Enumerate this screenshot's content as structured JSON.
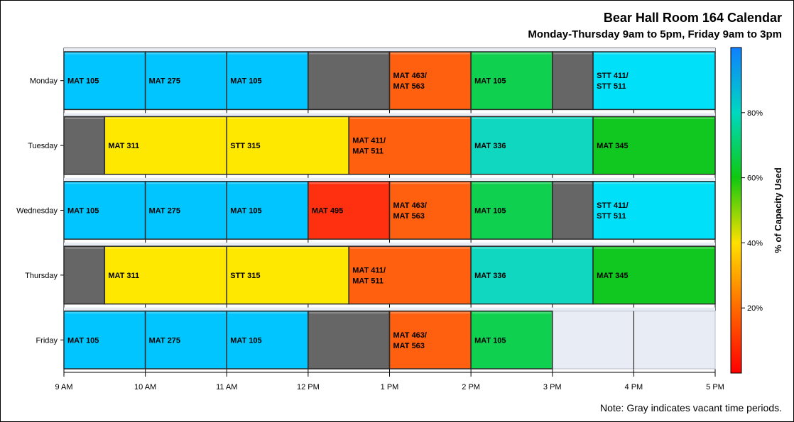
{
  "header": {
    "title": "Bear Hall Room 164 Calendar",
    "subtitle": "Monday-Thursday 9am to 5pm, Friday 9am to 3pm"
  },
  "note": "Note: Gray indicates vacant time periods.",
  "colors": {
    "vacant": "#666666",
    "closed": "#e8ecf4",
    "border": "#2a2a2a",
    "gridline": "#000000"
  },
  "chart_data": {
    "type": "bar",
    "subtype": "horizontal-timeline",
    "x_axis": {
      "range": [
        "9 AM",
        "5 PM"
      ],
      "ticks": [
        "9 AM",
        "10 AM",
        "11 AM",
        "12 PM",
        "1 PM",
        "2 PM",
        "3 PM",
        "4 PM",
        "5 PM"
      ]
    },
    "days": [
      "Monday",
      "Tuesday",
      "Wednesday",
      "Thursday",
      "Friday"
    ],
    "segments": [
      {
        "day": "Monday",
        "start": "9:00 AM",
        "end": "10:00 AM",
        "label": [
          "MAT 105"
        ],
        "color": "#00c5ff"
      },
      {
        "day": "Monday",
        "start": "10:00 AM",
        "end": "11:00 AM",
        "label": [
          "MAT 275"
        ],
        "color": "#00c5ff"
      },
      {
        "day": "Monday",
        "start": "11:00 AM",
        "end": "12:00 PM",
        "label": [
          "MAT 105"
        ],
        "color": "#00c5ff"
      },
      {
        "day": "Monday",
        "start": "12:00 PM",
        "end": "1:00 PM",
        "label": [],
        "color": "#666666"
      },
      {
        "day": "Monday",
        "start": "1:00 PM",
        "end": "2:00 PM",
        "label": [
          "MAT 463/",
          "MAT 563"
        ],
        "color": "#ff6010"
      },
      {
        "day": "Monday",
        "start": "2:00 PM",
        "end": "3:00 PM",
        "label": [
          "MAT 105"
        ],
        "color": "#10d050"
      },
      {
        "day": "Monday",
        "start": "3:00 PM",
        "end": "3:30 PM",
        "label": [],
        "color": "#666666"
      },
      {
        "day": "Monday",
        "start": "3:30 PM",
        "end": "5:00 PM",
        "label": [
          "STT 411/",
          "STT 511"
        ],
        "color": "#00e0f8"
      },
      {
        "day": "Tuesday",
        "start": "9:00 AM",
        "end": "9:30 AM",
        "label": [],
        "color": "#666666"
      },
      {
        "day": "Tuesday",
        "start": "9:30 AM",
        "end": "11:00 AM",
        "label": [
          "MAT 311"
        ],
        "color": "#ffe800"
      },
      {
        "day": "Tuesday",
        "start": "11:00 AM",
        "end": "12:30 PM",
        "label": [
          "STT 315"
        ],
        "color": "#ffe800"
      },
      {
        "day": "Tuesday",
        "start": "12:30 PM",
        "end": "2:00 PM",
        "label": [
          "MAT 411/",
          "MAT 511"
        ],
        "color": "#ff6010"
      },
      {
        "day": "Tuesday",
        "start": "2:00 PM",
        "end": "3:30 PM",
        "label": [
          "MAT 336"
        ],
        "color": "#10d8c0"
      },
      {
        "day": "Tuesday",
        "start": "3:30 PM",
        "end": "5:00 PM",
        "label": [
          "MAT 345"
        ],
        "color": "#10c820"
      },
      {
        "day": "Wednesday",
        "start": "9:00 AM",
        "end": "10:00 AM",
        "label": [
          "MAT 105"
        ],
        "color": "#00c5ff"
      },
      {
        "day": "Wednesday",
        "start": "10:00 AM",
        "end": "11:00 AM",
        "label": [
          "MAT 275"
        ],
        "color": "#00c5ff"
      },
      {
        "day": "Wednesday",
        "start": "11:00 AM",
        "end": "12:00 PM",
        "label": [
          "MAT 105"
        ],
        "color": "#00c5ff"
      },
      {
        "day": "Wednesday",
        "start": "12:00 PM",
        "end": "1:00 PM",
        "label": [
          "MAT 495"
        ],
        "color": "#ff3010"
      },
      {
        "day": "Wednesday",
        "start": "1:00 PM",
        "end": "2:00 PM",
        "label": [
          "MAT 463/",
          "MAT 563"
        ],
        "color": "#ff6010"
      },
      {
        "day": "Wednesday",
        "start": "2:00 PM",
        "end": "3:00 PM",
        "label": [
          "MAT 105"
        ],
        "color": "#10d050"
      },
      {
        "day": "Wednesday",
        "start": "3:00 PM",
        "end": "3:30 PM",
        "label": [],
        "color": "#666666"
      },
      {
        "day": "Wednesday",
        "start": "3:30 PM",
        "end": "5:00 PM",
        "label": [
          "STT 411/",
          "STT 511"
        ],
        "color": "#00e0f8"
      },
      {
        "day": "Thursday",
        "start": "9:00 AM",
        "end": "9:30 AM",
        "label": [],
        "color": "#666666"
      },
      {
        "day": "Thursday",
        "start": "9:30 AM",
        "end": "11:00 AM",
        "label": [
          "MAT 311"
        ],
        "color": "#ffe800"
      },
      {
        "day": "Thursday",
        "start": "11:00 AM",
        "end": "12:30 PM",
        "label": [
          "STT 315"
        ],
        "color": "#ffe800"
      },
      {
        "day": "Thursday",
        "start": "12:30 PM",
        "end": "2:00 PM",
        "label": [
          "MAT 411/",
          "MAT 511"
        ],
        "color": "#ff6010"
      },
      {
        "day": "Thursday",
        "start": "2:00 PM",
        "end": "3:30 PM",
        "label": [
          "MAT 336"
        ],
        "color": "#10d8c0"
      },
      {
        "day": "Thursday",
        "start": "3:30 PM",
        "end": "5:00 PM",
        "label": [
          "MAT 345"
        ],
        "color": "#10c820"
      },
      {
        "day": "Friday",
        "start": "9:00 AM",
        "end": "10:00 AM",
        "label": [
          "MAT 105"
        ],
        "color": "#00c5ff"
      },
      {
        "day": "Friday",
        "start": "10:00 AM",
        "end": "11:00 AM",
        "label": [
          "MAT 275"
        ],
        "color": "#00c5ff"
      },
      {
        "day": "Friday",
        "start": "11:00 AM",
        "end": "12:00 PM",
        "label": [
          "MAT 105"
        ],
        "color": "#00c5ff"
      },
      {
        "day": "Friday",
        "start": "12:00 PM",
        "end": "1:00 PM",
        "label": [],
        "color": "#666666"
      },
      {
        "day": "Friday",
        "start": "1:00 PM",
        "end": "2:00 PM",
        "label": [
          "MAT 463/",
          "MAT 563"
        ],
        "color": "#ff6010"
      },
      {
        "day": "Friday",
        "start": "2:00 PM",
        "end": "3:00 PM",
        "label": [
          "MAT 105"
        ],
        "color": "#10d050"
      }
    ],
    "closed_periods": [
      {
        "day": "Friday",
        "start": "3:00 PM",
        "end": "5:00 PM"
      }
    ],
    "colorbar": {
      "title": "% of Capacity Used",
      "range": [
        0,
        100
      ],
      "ticks": [
        "20%",
        "40%",
        "60%",
        "80%"
      ],
      "tick_values": [
        20,
        40,
        60,
        80
      ],
      "gradient": [
        "#ff0000",
        "#ff6a00",
        "#ffe000",
        "#10c810",
        "#00d8c0",
        "#1080ff"
      ]
    }
  }
}
